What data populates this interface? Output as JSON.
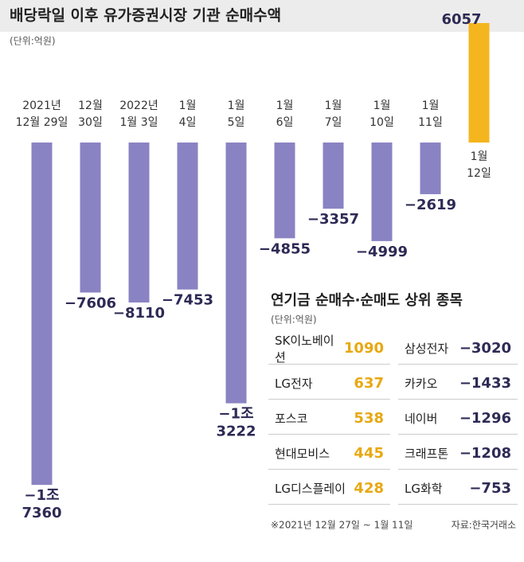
{
  "chart_data": {
    "type": "bar",
    "title": "배당락일 이후 유가증권시장 기관 순매수액",
    "subtitle": "(단위:억원)",
    "categories": [
      [
        "2021년",
        "12월 29일"
      ],
      [
        "12월",
        "30일"
      ],
      [
        "2022년",
        "1월 3일"
      ],
      [
        "1월",
        "4일"
      ],
      [
        "1월",
        "5일"
      ],
      [
        "1월",
        "6일"
      ],
      [
        "1월",
        "7일"
      ],
      [
        "1월",
        "10일"
      ],
      [
        "1월",
        "11일"
      ],
      [
        "1월",
        "12일"
      ]
    ],
    "values": [
      -17360,
      -7606,
      -8110,
      -7453,
      -13222,
      -4855,
      -3357,
      -4999,
      -2619,
      6057
    ],
    "value_labels": [
      "−1조 7360",
      "−7606",
      "−8110",
      "−7453",
      "−1조 3222",
      "−4855",
      "−3357",
      "−4999",
      "−2619",
      "6057"
    ],
    "negative_color": "#8983c3",
    "positive_color": "#f4b51f",
    "ylim": [
      -18000,
      6500
    ]
  },
  "table": {
    "title": "연기금 순매수·순매도 상위 종목",
    "unit": "(단위:억원)",
    "buy": [
      [
        "SK이노베이션",
        "1090"
      ],
      [
        "LG전자",
        "637"
      ],
      [
        "포스코",
        "538"
      ],
      [
        "현대모비스",
        "445"
      ],
      [
        "LG디스플레이",
        "428"
      ]
    ],
    "sell": [
      [
        "삼성전자",
        "−3020"
      ],
      [
        "카카오",
        "−1433"
      ],
      [
        "네이버",
        "−1296"
      ],
      [
        "크래프톤",
        "−1208"
      ],
      [
        "LG화학",
        "−753"
      ]
    ],
    "note": "※2021년 12월 27일 ~ 1월 11일",
    "source": "자료:한국거래소"
  }
}
